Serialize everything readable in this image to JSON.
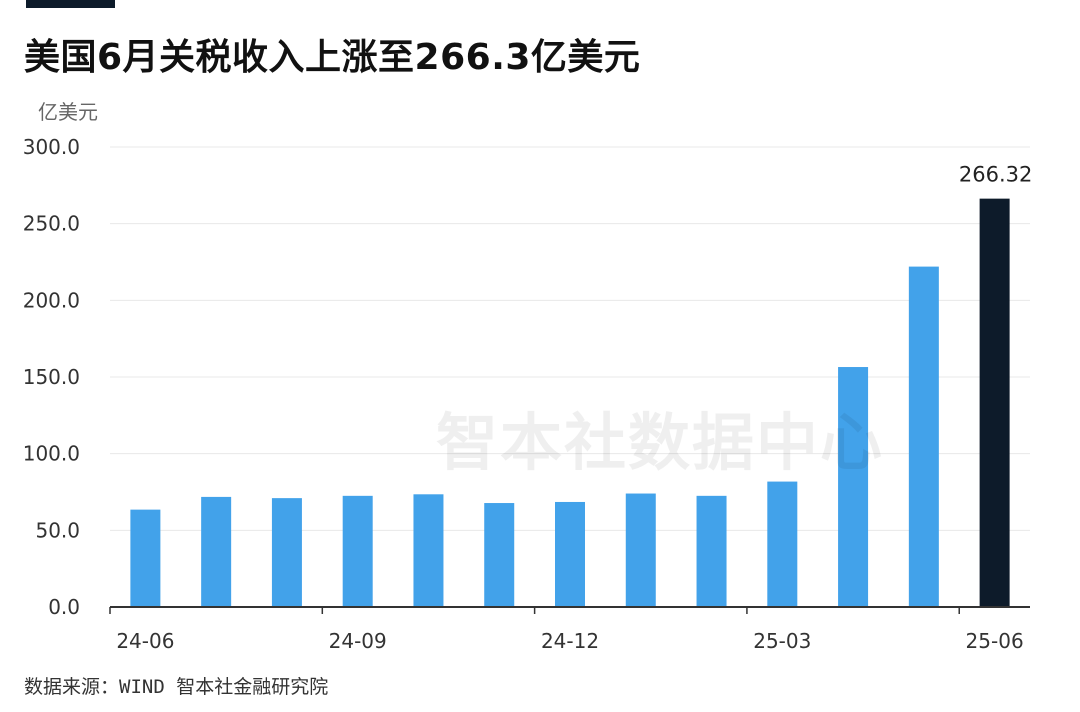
{
  "page": {
    "title": "美国6月关税收入上涨至266.3亿美元",
    "unit_label": "亿美元",
    "watermark": "智本社数据中心",
    "source": "数据来源：WIND 智本社金融研究院"
  },
  "chart_data": {
    "type": "bar",
    "title": "美国6月关税收入上涨至266.3亿美元",
    "ylabel": "亿美元",
    "xlabel": "",
    "ylim": [
      0,
      300
    ],
    "y_ticks": [
      "0.0",
      "50.0",
      "100.0",
      "150.0",
      "200.0",
      "250.0",
      "300.0"
    ],
    "x_tick_labels": [
      "24-06",
      "24-09",
      "24-12",
      "25-03",
      "25-06"
    ],
    "categories": [
      "24-06",
      "24-07",
      "24-08",
      "24-09",
      "24-10",
      "24-11",
      "24-12",
      "25-01",
      "25-02",
      "25-03",
      "25-04",
      "25-05",
      "25-06"
    ],
    "values": [
      63.5,
      71.8,
      71.0,
      72.5,
      73.5,
      67.8,
      68.5,
      74.0,
      72.5,
      81.8,
      156.5,
      222.0,
      266.32
    ],
    "data_labels": [
      {
        "category": "25-06",
        "text": "266.32"
      }
    ],
    "grid": true,
    "colors": {
      "bar": "#42a2ea",
      "highlight": "#0d1b2a",
      "axis": "#333333",
      "grid": "#e8e8e8"
    }
  }
}
